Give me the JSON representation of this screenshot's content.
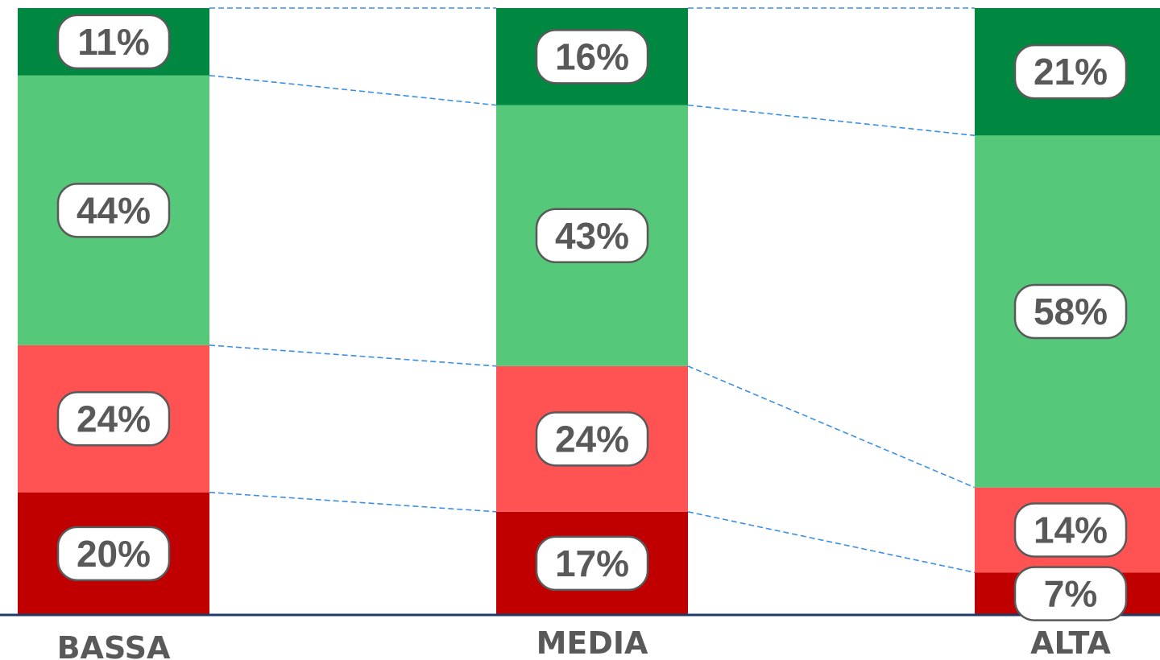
{
  "chart_data": {
    "type": "bar",
    "stacked": true,
    "normalized": true,
    "categories": [
      "BASSA",
      "MEDIA",
      "ALTA"
    ],
    "series": [
      {
        "values": [
          20,
          17,
          7
        ],
        "labels": [
          "20%",
          "17%",
          "7%"
        ],
        "color": "#C00000"
      },
      {
        "values": [
          24,
          24,
          14
        ],
        "labels": [
          "24%",
          "24%",
          "14%"
        ],
        "color": "#FF5252"
      },
      {
        "values": [
          44,
          43,
          58
        ],
        "labels": [
          "44%",
          "43%",
          "58%"
        ],
        "color": "#55C87A"
      },
      {
        "values": [
          11,
          16,
          21
        ],
        "labels": [
          "11%",
          "16%",
          "21%"
        ],
        "color": "#008840"
      }
    ],
    "series_lines": true,
    "axis_line_color": "#1F3864",
    "series_line_color": "#3B8FE8",
    "label_box": {
      "fill": "#ffffff",
      "stroke": "#595959"
    },
    "legend": "none",
    "grid": false
  }
}
